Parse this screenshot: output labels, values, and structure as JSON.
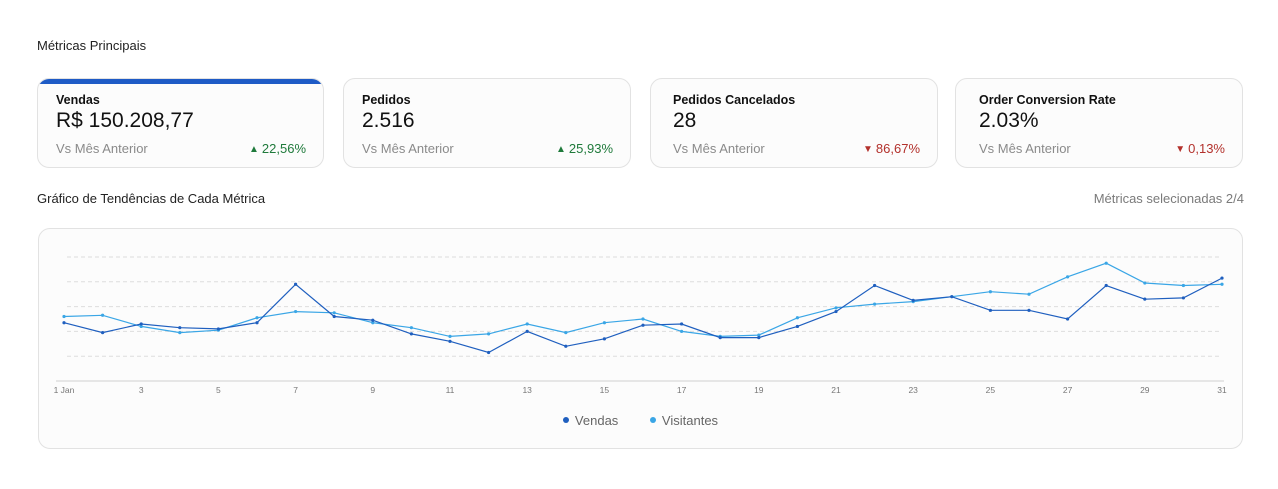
{
  "sections": {
    "main_title": "Métricas Principais",
    "trend_title": "Gráfico de Tendências de Cada Métrica",
    "selected_count": "Métricas selecionadas 2/4"
  },
  "cards": [
    {
      "label": "Vendas",
      "value": "R$ 150.208,77",
      "compare": "Vs Mês Anterior",
      "delta": "22,56%",
      "direction": "up"
    },
    {
      "label": "Pedidos",
      "value": "2.516",
      "compare": "Vs Mês Anterior",
      "delta": "25,93%",
      "direction": "up"
    },
    {
      "label": "Pedidos Cancelados",
      "value": "28",
      "compare": "Vs Mês Anterior",
      "delta": "86,67%",
      "direction": "down"
    },
    {
      "label": "Order Conversion Rate",
      "value": "2.03%",
      "compare": "Vs Mês Anterior",
      "delta": "0,13%",
      "direction": "down"
    }
  ],
  "colors": {
    "accent": "#1e5bc6",
    "vendas": "#1f5fbf",
    "visitantes": "#3aa6e6",
    "up": "#1f7a3b",
    "down": "#b3312c"
  },
  "chart_data": {
    "type": "line",
    "x": [
      1,
      2,
      3,
      4,
      5,
      6,
      7,
      8,
      9,
      10,
      11,
      12,
      13,
      14,
      15,
      16,
      17,
      18,
      19,
      20,
      21,
      22,
      23,
      24,
      25,
      26,
      27,
      28,
      29,
      30,
      31
    ],
    "tick_labels": [
      "1 Jan",
      "3",
      "5",
      "7",
      "9",
      "11",
      "13",
      "15",
      "17",
      "19",
      "21",
      "23",
      "25",
      "27",
      "29",
      "31"
    ],
    "tick_positions": [
      1,
      3,
      5,
      7,
      9,
      11,
      13,
      15,
      17,
      19,
      21,
      23,
      25,
      27,
      29,
      31
    ],
    "xlim": [
      1,
      31
    ],
    "ylim": [
      0,
      5
    ],
    "grid": true,
    "legend_position": "bottom-center",
    "series": [
      {
        "name": "Vendas",
        "values": [
          2.35,
          1.95,
          2.3,
          2.15,
          2.1,
          2.35,
          3.9,
          2.6,
          2.45,
          1.9,
          1.6,
          1.15,
          2.0,
          1.4,
          1.7,
          2.25,
          2.3,
          1.75,
          1.75,
          2.2,
          2.8,
          3.85,
          3.25,
          3.4,
          2.85,
          2.85,
          2.5,
          3.85,
          3.3,
          3.35,
          4.15
        ]
      },
      {
        "name": "Visitantes",
        "values": [
          2.6,
          2.65,
          2.2,
          1.95,
          2.05,
          2.55,
          2.8,
          2.75,
          2.35,
          2.15,
          1.8,
          1.9,
          2.3,
          1.95,
          2.35,
          2.5,
          2.0,
          1.8,
          1.85,
          2.55,
          2.95,
          3.1,
          3.2,
          3.4,
          3.6,
          3.5,
          4.2,
          4.75,
          3.95,
          3.85,
          3.9
        ]
      }
    ]
  }
}
